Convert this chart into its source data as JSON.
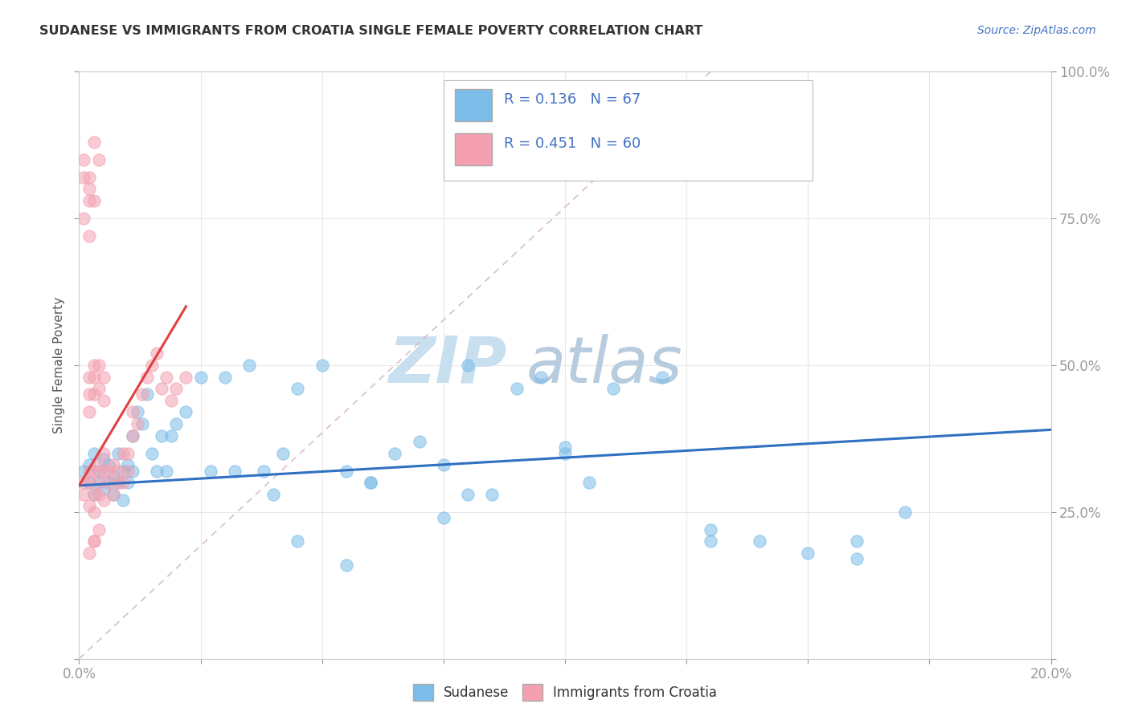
{
  "title": "SUDANESE VS IMMIGRANTS FROM CROATIA SINGLE FEMALE POVERTY CORRELATION CHART",
  "source_text": "Source: ZipAtlas.com",
  "ylabel": "Single Female Poverty",
  "xlim": [
    0.0,
    0.2
  ],
  "ylim": [
    0.0,
    1.0
  ],
  "xtick_positions": [
    0.0,
    0.025,
    0.05,
    0.075,
    0.1,
    0.125,
    0.15,
    0.175,
    0.2
  ],
  "xtick_labels": [
    "0.0%",
    "",
    "",
    "",
    "",
    "",
    "",
    "",
    "20.0%"
  ],
  "ytick_positions": [
    0.0,
    0.25,
    0.5,
    0.75,
    1.0
  ],
  "ytick_labels": [
    "",
    "25.0%",
    "50.0%",
    "75.0%",
    "100.0%"
  ],
  "blue_R": 0.136,
  "blue_N": 67,
  "pink_R": 0.451,
  "pink_N": 60,
  "blue_color": "#7bbde8",
  "pink_color": "#f4a0b0",
  "blue_line_color": "#3070c0",
  "pink_line_color": "#e04040",
  "ref_line_color": "#d8b8b8",
  "watermark_zip": "ZIP",
  "watermark_atlas": "atlas",
  "watermark_color_zip": "#c8dff0",
  "watermark_color_atlas": "#b8cce0",
  "background_color": "#ffffff",
  "grid_color": "#e8e8e8",
  "title_color": "#333333",
  "source_color": "#4472c4",
  "axis_label_color": "#555555",
  "tick_color": "#4472c4",
  "legend_text_color": "#4472c4",
  "blue_scatter_x": [
    0.001,
    0.002,
    0.002,
    0.003,
    0.003,
    0.004,
    0.004,
    0.005,
    0.005,
    0.006,
    0.006,
    0.007,
    0.007,
    0.008,
    0.008,
    0.009,
    0.009,
    0.01,
    0.01,
    0.011,
    0.011,
    0.012,
    0.013,
    0.014,
    0.015,
    0.016,
    0.017,
    0.018,
    0.019,
    0.02,
    0.022,
    0.025,
    0.027,
    0.03,
    0.032,
    0.035,
    0.038,
    0.042,
    0.045,
    0.05,
    0.055,
    0.06,
    0.065,
    0.07,
    0.075,
    0.08,
    0.085,
    0.09,
    0.095,
    0.1,
    0.105,
    0.11,
    0.12,
    0.13,
    0.14,
    0.15,
    0.16,
    0.17,
    0.13,
    0.16,
    0.1,
    0.08,
    0.06,
    0.04,
    0.055,
    0.045,
    0.075
  ],
  "blue_scatter_y": [
    0.32,
    0.3,
    0.33,
    0.28,
    0.35,
    0.3,
    0.32,
    0.29,
    0.34,
    0.3,
    0.33,
    0.28,
    0.31,
    0.35,
    0.3,
    0.32,
    0.27,
    0.3,
    0.33,
    0.32,
    0.38,
    0.42,
    0.4,
    0.45,
    0.35,
    0.32,
    0.38,
    0.32,
    0.38,
    0.4,
    0.42,
    0.48,
    0.32,
    0.48,
    0.32,
    0.5,
    0.32,
    0.35,
    0.46,
    0.5,
    0.32,
    0.3,
    0.35,
    0.37,
    0.33,
    0.5,
    0.28,
    0.46,
    0.48,
    0.35,
    0.3,
    0.46,
    0.48,
    0.2,
    0.2,
    0.18,
    0.2,
    0.25,
    0.22,
    0.17,
    0.36,
    0.28,
    0.3,
    0.28,
    0.16,
    0.2,
    0.24
  ],
  "pink_scatter_x": [
    0.001,
    0.001,
    0.002,
    0.002,
    0.002,
    0.003,
    0.003,
    0.003,
    0.004,
    0.004,
    0.004,
    0.005,
    0.005,
    0.005,
    0.006,
    0.006,
    0.007,
    0.007,
    0.008,
    0.008,
    0.009,
    0.009,
    0.01,
    0.01,
    0.011,
    0.011,
    0.012,
    0.013,
    0.014,
    0.015,
    0.016,
    0.017,
    0.018,
    0.019,
    0.02,
    0.022,
    0.002,
    0.003,
    0.002,
    0.003,
    0.002,
    0.003,
    0.004,
    0.004,
    0.005,
    0.005,
    0.003,
    0.004,
    0.002,
    0.003,
    0.001,
    0.002,
    0.003,
    0.004,
    0.002,
    0.003,
    0.001,
    0.002,
    0.001,
    0.002
  ],
  "pink_scatter_y": [
    0.3,
    0.28,
    0.32,
    0.26,
    0.3,
    0.28,
    0.32,
    0.25,
    0.3,
    0.28,
    0.33,
    0.27,
    0.32,
    0.35,
    0.3,
    0.32,
    0.28,
    0.33,
    0.3,
    0.32,
    0.35,
    0.3,
    0.32,
    0.35,
    0.38,
    0.42,
    0.4,
    0.45,
    0.48,
    0.5,
    0.52,
    0.46,
    0.48,
    0.44,
    0.46,
    0.48,
    0.48,
    0.5,
    0.45,
    0.48,
    0.42,
    0.45,
    0.46,
    0.5,
    0.48,
    0.44,
    0.2,
    0.22,
    0.18,
    0.2,
    0.85,
    0.82,
    0.88,
    0.85,
    0.8,
    0.78,
    0.82,
    0.78,
    0.75,
    0.72
  ],
  "blue_line_x": [
    0.0,
    0.2
  ],
  "blue_line_y": [
    0.295,
    0.39
  ],
  "pink_line_x": [
    0.0,
    0.022
  ],
  "pink_line_y": [
    0.295,
    0.6
  ],
  "ref_line_x": [
    0.0,
    0.13
  ],
  "ref_line_y": [
    0.0,
    1.0
  ]
}
